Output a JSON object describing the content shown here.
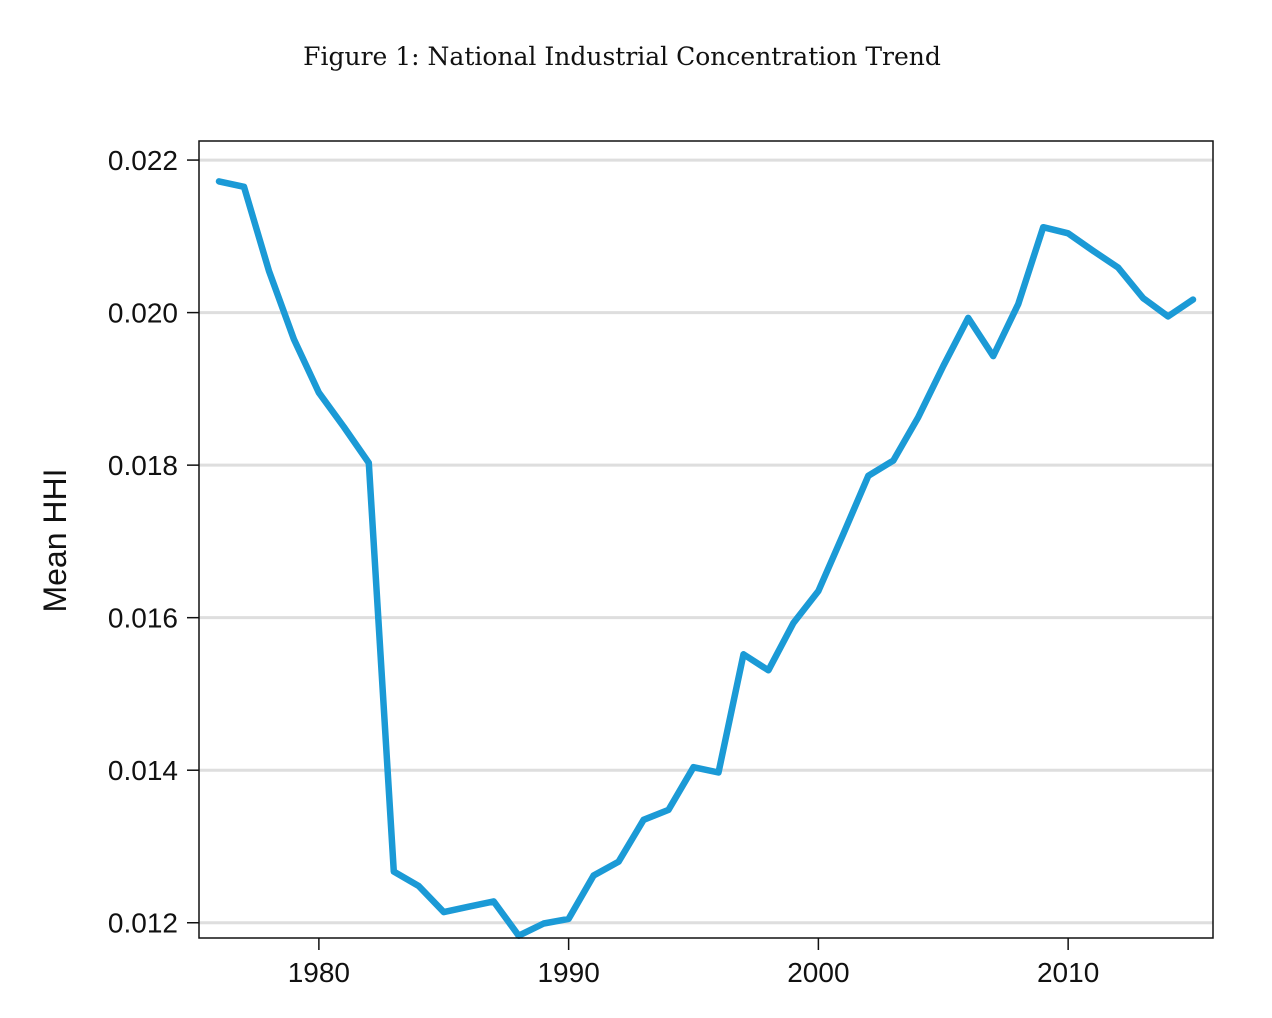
{
  "figure": {
    "title": "Figure 1: National Industrial Concentration Trend"
  },
  "chart_data": {
    "type": "line",
    "title": "Figure 1: National Industrial Concentration Trend",
    "xlabel": "",
    "ylabel": "Mean HHI",
    "x": [
      1976,
      1977,
      1978,
      1979,
      1980,
      1981,
      1982,
      1983,
      1984,
      1985,
      1986,
      1987,
      1988,
      1989,
      1990,
      1991,
      1992,
      1993,
      1994,
      1995,
      1996,
      1997,
      1998,
      1999,
      2000,
      2001,
      2002,
      2003,
      2004,
      2005,
      2006,
      2007,
      2008,
      2009,
      2010,
      2011,
      2012,
      2013,
      2014,
      2015
    ],
    "series": [
      {
        "values": [
          0.02172,
          0.02165,
          0.02055,
          0.01965,
          0.01895,
          0.0185,
          0.01803,
          0.01267,
          0.01248,
          0.01214,
          0.01221,
          0.01228,
          0.01183,
          0.01199,
          0.01205,
          0.01262,
          0.0128,
          0.01335,
          0.01348,
          0.01404,
          0.01397,
          0.01552,
          0.01531,
          0.01593,
          0.01635,
          0.0171,
          0.01786,
          0.01806,
          0.01863,
          0.0193,
          0.01993,
          0.01943,
          0.02011,
          0.02112,
          0.02104,
          0.02081,
          0.02059,
          0.02019,
          0.01995,
          0.02017
        ],
        "color": "#1b9ad6"
      }
    ],
    "xlim": [
      1975.2,
      2015.8
    ],
    "ylim": [
      0.0118,
      0.02225
    ],
    "xticks": [
      1980,
      1990,
      2000,
      2010
    ],
    "xtick_labels": [
      "1980",
      "1990",
      "2000",
      "2010"
    ],
    "yticks": [
      0.012,
      0.014,
      0.016,
      0.018,
      0.02,
      0.022
    ],
    "ytick_labels": [
      "0.012",
      "0.014",
      "0.016",
      "0.018",
      "0.020",
      "0.022"
    ],
    "grid": "horizontal",
    "grid_color": "#dedede",
    "legend": "none"
  }
}
